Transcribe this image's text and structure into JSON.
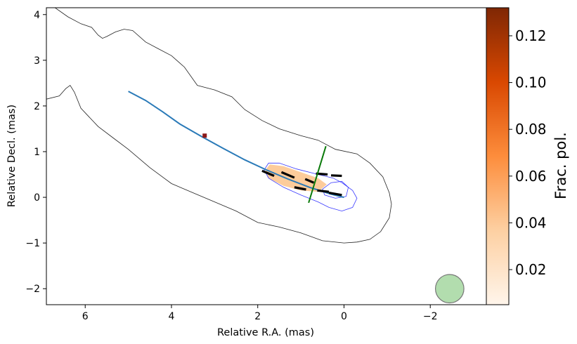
{
  "chart_data": {
    "type": "contour",
    "xlabel": "Relative R.A. (mas)",
    "ylabel": "Relative Decl. (mas)",
    "xlim": [
      6.9,
      -3.3
    ],
    "ylim": [
      -2.35,
      4.15
    ],
    "xticks": [
      6,
      4,
      2,
      0,
      -2
    ],
    "xtick_labels": [
      "6",
      "4",
      "2",
      "0",
      "−2"
    ],
    "yticks": [
      -2,
      -1,
      0,
      1,
      2,
      3,
      4
    ],
    "ytick_labels": [
      "−2",
      "−1",
      "0",
      "1",
      "2",
      "3",
      "4"
    ],
    "colorbar": {
      "label": "Frac. pol.",
      "range": [
        0.005,
        0.132
      ],
      "ticks": [
        0.02,
        0.04,
        0.06,
        0.08,
        0.1,
        0.12
      ],
      "tick_labels": [
        "0.02",
        "0.04",
        "0.06",
        "0.08",
        "0.10",
        "0.12"
      ],
      "colormap_stops": [
        "#fff5eb",
        "#fdd0a2",
        "#fd8d3c",
        "#d94801",
        "#7f2704"
      ]
    },
    "total_intensity_contour": [
      [
        6.7,
        4.15
      ],
      [
        6.4,
        3.95
      ],
      [
        6.1,
        3.8
      ],
      [
        5.85,
        3.72
      ],
      [
        5.7,
        3.55
      ],
      [
        5.6,
        3.48
      ],
      [
        5.5,
        3.52
      ],
      [
        5.3,
        3.62
      ],
      [
        5.1,
        3.68
      ],
      [
        4.9,
        3.65
      ],
      [
        4.6,
        3.4
      ],
      [
        4.3,
        3.25
      ],
      [
        4.0,
        3.1
      ],
      [
        3.7,
        2.85
      ],
      [
        3.4,
        2.45
      ],
      [
        3.0,
        2.35
      ],
      [
        2.6,
        2.2
      ],
      [
        2.3,
        1.92
      ],
      [
        1.9,
        1.68
      ],
      [
        1.5,
        1.5
      ],
      [
        1.0,
        1.35
      ],
      [
        0.6,
        1.25
      ],
      [
        0.2,
        1.05
      ],
      [
        -0.3,
        0.95
      ],
      [
        -0.6,
        0.75
      ],
      [
        -0.9,
        0.45
      ],
      [
        -1.05,
        0.1
      ],
      [
        -1.1,
        -0.15
      ],
      [
        -1.05,
        -0.45
      ],
      [
        -0.85,
        -0.75
      ],
      [
        -0.6,
        -0.92
      ],
      [
        -0.3,
        -0.98
      ],
      [
        0.0,
        -1.0
      ],
      [
        0.5,
        -0.95
      ],
      [
        1.0,
        -0.78
      ],
      [
        1.5,
        -0.65
      ],
      [
        2.0,
        -0.55
      ],
      [
        2.5,
        -0.3
      ],
      [
        3.0,
        -0.1
      ],
      [
        3.5,
        0.1
      ],
      [
        4.0,
        0.3
      ],
      [
        4.5,
        0.65
      ],
      [
        5.0,
        1.05
      ],
      [
        5.35,
        1.3
      ],
      [
        5.7,
        1.55
      ],
      [
        6.1,
        1.95
      ],
      [
        6.25,
        2.3
      ],
      [
        6.35,
        2.45
      ],
      [
        6.45,
        2.38
      ],
      [
        6.6,
        2.22
      ],
      [
        6.9,
        2.15
      ]
    ],
    "pol_contour_outer": [
      [
        1.75,
        0.75
      ],
      [
        1.5,
        0.75
      ],
      [
        1.1,
        0.62
      ],
      [
        0.6,
        0.5
      ],
      [
        0.25,
        0.42
      ],
      [
        0.05,
        0.32
      ],
      [
        -0.2,
        0.15
      ],
      [
        -0.3,
        -0.02
      ],
      [
        -0.2,
        -0.22
      ],
      [
        0.05,
        -0.3
      ],
      [
        0.35,
        -0.22
      ],
      [
        0.6,
        -0.1
      ],
      [
        1.0,
        0.05
      ],
      [
        1.4,
        0.22
      ],
      [
        1.75,
        0.42
      ],
      [
        1.85,
        0.6
      ]
    ],
    "pol_contour_inner": [
      [
        0.5,
        0.18
      ],
      [
        0.3,
        0.32
      ],
      [
        0.05,
        0.35
      ],
      [
        -0.1,
        0.22
      ],
      [
        -0.05,
        0.02
      ],
      [
        0.2,
        -0.02
      ],
      [
        0.45,
        0.05
      ]
    ],
    "fractional_pol_fill": [
      [
        1.72,
        0.72
      ],
      [
        1.4,
        0.68
      ],
      [
        1.0,
        0.55
      ],
      [
        0.6,
        0.42
      ],
      [
        0.4,
        0.28
      ],
      [
        0.6,
        0.12
      ],
      [
        1.0,
        0.15
      ],
      [
        1.4,
        0.25
      ],
      [
        1.75,
        0.42
      ],
      [
        1.82,
        0.6
      ]
    ],
    "jet_ridge_line": [
      [
        5.0,
        2.32
      ],
      [
        4.6,
        2.12
      ],
      [
        4.2,
        1.87
      ],
      [
        3.8,
        1.6
      ],
      [
        3.3,
        1.33
      ],
      [
        2.8,
        1.07
      ],
      [
        2.3,
        0.82
      ],
      [
        1.8,
        0.6
      ],
      [
        1.3,
        0.4
      ],
      [
        0.8,
        0.22
      ],
      [
        0.3,
        0.07
      ],
      [
        0.0,
        0.0
      ]
    ],
    "evpa_vectors": [
      [
        [
          1.9,
          0.58
        ],
        [
          1.62,
          0.47
        ]
      ],
      [
        [
          1.45,
          0.55
        ],
        [
          1.15,
          0.43
        ]
      ],
      [
        [
          0.9,
          0.4
        ],
        [
          0.7,
          0.32
        ]
      ],
      [
        [
          0.65,
          0.52
        ],
        [
          0.38,
          0.5
        ]
      ],
      [
        [
          0.3,
          0.48
        ],
        [
          0.05,
          0.47
        ]
      ],
      [
        [
          1.15,
          0.22
        ],
        [
          0.88,
          0.17
        ]
      ],
      [
        [
          0.62,
          0.15
        ],
        [
          0.35,
          0.12
        ]
      ],
      [
        [
          0.35,
          0.1
        ],
        [
          0.05,
          0.05
        ]
      ]
    ],
    "transverse_slice": [
      [
        0.42,
        1.12
      ],
      [
        0.82,
        -0.12
      ]
    ],
    "marker": {
      "x": 3.23,
      "y": 1.35
    },
    "beam": {
      "x": -2.45,
      "y": -2.0,
      "radius": 0.33,
      "color": "#9fd49a"
    },
    "colors": {
      "contour": "#222222",
      "pol_contour": "#3a3aff",
      "ridge": "#2a7ab8",
      "evpa": "#000000",
      "slice": "#0a7a0a",
      "marker": "#8b1a1a"
    }
  }
}
